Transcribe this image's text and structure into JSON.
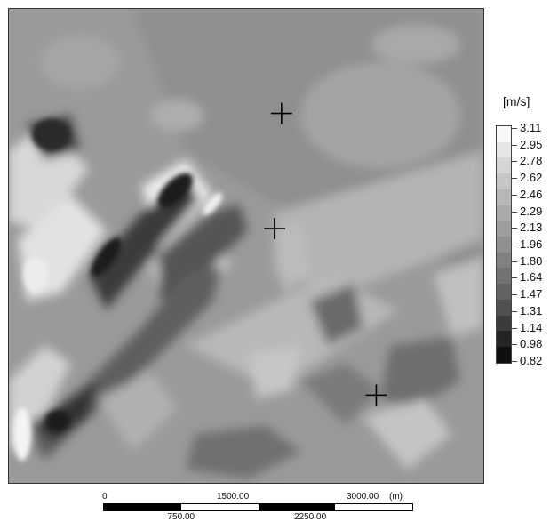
{
  "legend": {
    "unit": "[m/s]",
    "ticks": [
      "3.11",
      "2.95",
      "2.78",
      "2.62",
      "2.46",
      "2.29",
      "2.13",
      "1.96",
      "1.80",
      "1.64",
      "1.47",
      "1.31",
      "1.14",
      "0.98",
      "0.82"
    ],
    "colors": [
      "#f8f8f8",
      "#e6e6e6",
      "#d5d5d5",
      "#c6c6c6",
      "#b7b7b7",
      "#aaaaaa",
      "#9d9d9d",
      "#909090",
      "#818181",
      "#727272",
      "#626262",
      "#505050",
      "#3b3b3b",
      "#252525",
      "#0f0f0f"
    ]
  },
  "markers": [
    {
      "name": "marker-cross-1",
      "symbol": "cross"
    },
    {
      "name": "marker-cross-2",
      "symbol": "cross"
    },
    {
      "name": "marker-cross-3",
      "symbol": "cross"
    }
  ],
  "scale": {
    "top_labels": [
      "0",
      "1500.00",
      "3000.00"
    ],
    "unit": "(m)",
    "bottom_labels": [
      "750.00",
      "2250.00"
    ]
  }
}
